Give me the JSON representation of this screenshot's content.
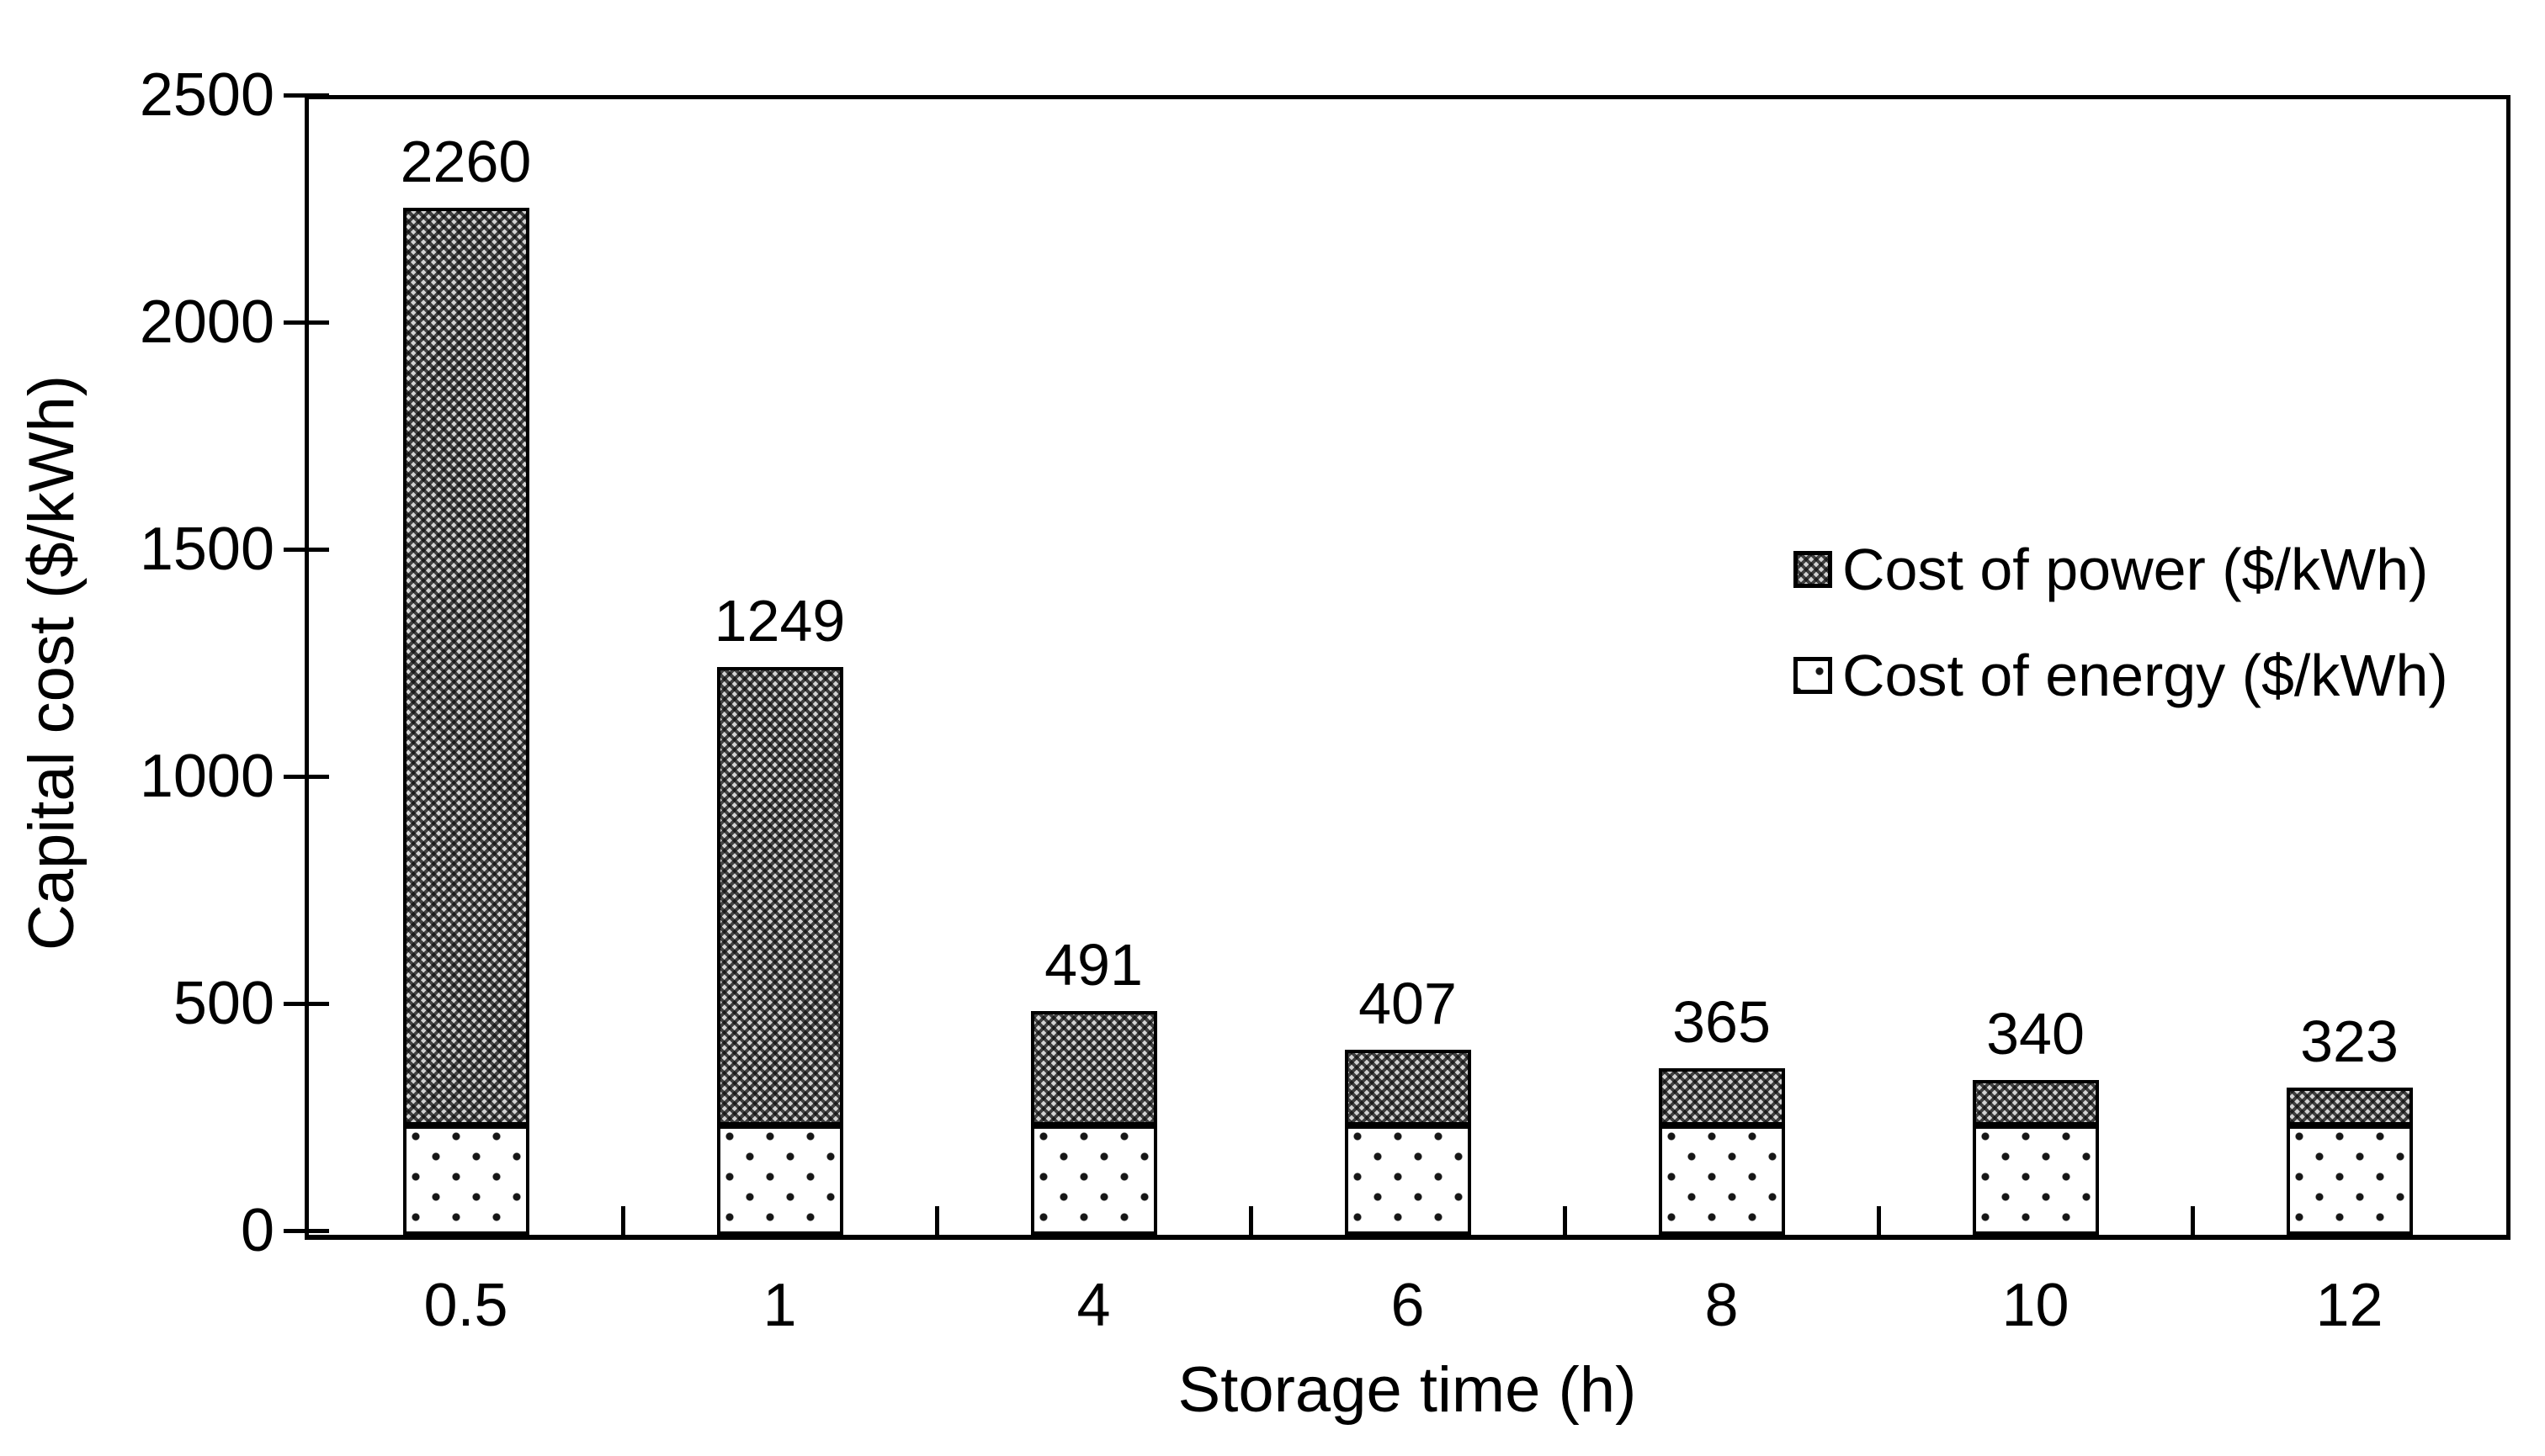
{
  "chart_data": {
    "type": "bar",
    "stacked": true,
    "title": "",
    "xlabel": "Storage time (h)",
    "ylabel": "Capital cost ($/kWh)",
    "categories": [
      "0.5",
      "1",
      "4",
      "6",
      "8",
      "10",
      "12"
    ],
    "series": [
      {
        "name": "Cost of energy ($/kWh)",
        "pattern": "dots",
        "values": [
          240,
          240,
          240,
          240,
          240,
          240,
          240
        ]
      },
      {
        "name": "Cost of power ($/kWh)",
        "pattern": "crosshatch",
        "values": [
          2020,
          1009,
          251,
          167,
          125,
          100,
          83
        ]
      }
    ],
    "bar_total_labels": [
      "2260",
      "1249",
      "491",
      "407",
      "365",
      "340",
      "323"
    ],
    "ylim": [
      0,
      2500
    ],
    "yticks": [
      0,
      500,
      1000,
      1500,
      2000,
      2500
    ],
    "grid": false,
    "legend": {
      "position": "inside-right",
      "entries": [
        "Cost of power ($/kWh)",
        "Cost of energy ($/kWh)"
      ]
    }
  },
  "colors": {
    "ink": "#000000",
    "background": "#ffffff",
    "crosshatch_base": "#d2d2d2",
    "dot_fill": "#ffffff"
  }
}
